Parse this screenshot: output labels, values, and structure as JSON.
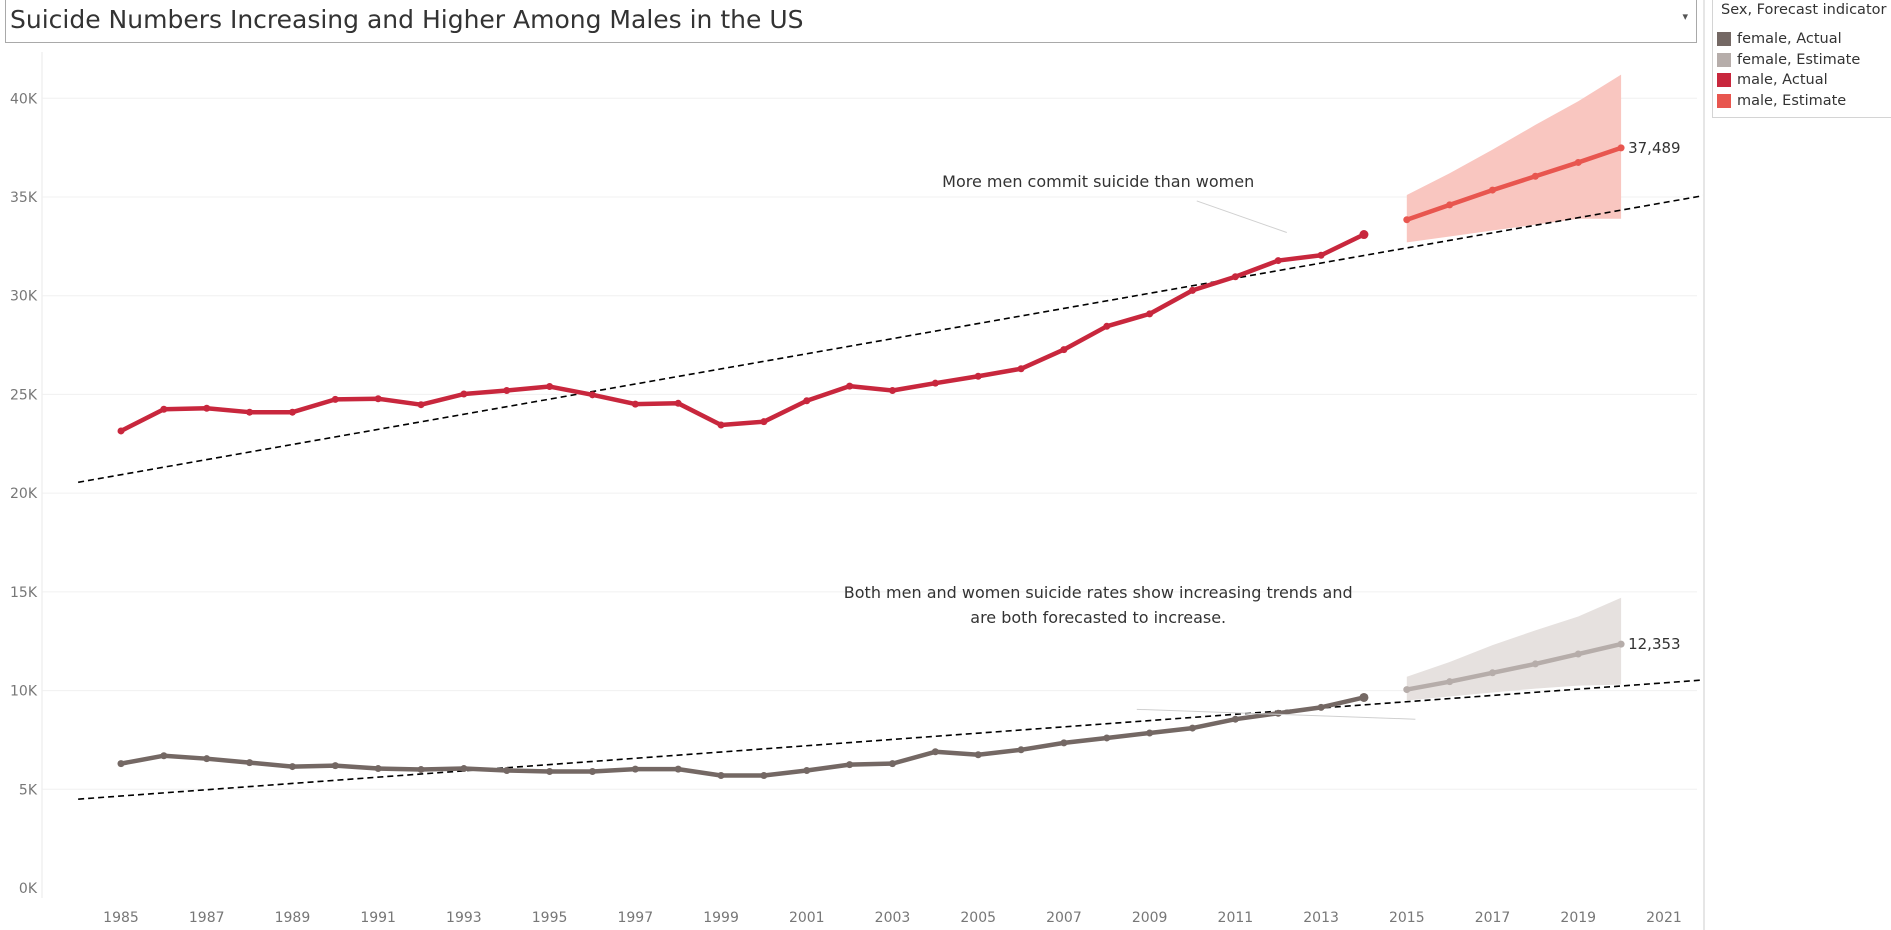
{
  "title": "Suicide Numbers Increasing and Higher Among Males in the US",
  "legend": {
    "title": "Sex, Forecast indicator",
    "items": [
      {
        "label": "female, Actual",
        "color": "#746864"
      },
      {
        "label": "female, Estimate",
        "color": "#b6adaa"
      },
      {
        "label": "male, Actual",
        "color": "#c8273d"
      },
      {
        "label": "male, Estimate",
        "color": "#e8564f"
      }
    ]
  },
  "chart_data": {
    "type": "line",
    "title": "Suicide Numbers Increasing and Higher Among Males in the US",
    "xlabel": "",
    "ylabel": "",
    "xlim": [
      1984,
      2022
    ],
    "ylim": [
      0,
      42000
    ],
    "x_ticks": [
      "1985",
      "1987",
      "1989",
      "1991",
      "1993",
      "1995",
      "1997",
      "1999",
      "2001",
      "2003",
      "2005",
      "2007",
      "2009",
      "2011",
      "2013",
      "2015",
      "2017",
      "2019",
      "2021"
    ],
    "y_ticks": [
      "0K",
      "5K",
      "10K",
      "15K",
      "20K",
      "25K",
      "30K",
      "35K",
      "40K"
    ],
    "y_tick_values": [
      0,
      5000,
      10000,
      15000,
      20000,
      25000,
      30000,
      35000,
      40000
    ],
    "grid": true,
    "legend_position": "right",
    "series": [
      {
        "name": "male, Actual",
        "color": "#c8273d",
        "x": [
          1985,
          1986,
          1987,
          1988,
          1989,
          1990,
          1991,
          1992,
          1993,
          1994,
          1995,
          1996,
          1997,
          1998,
          1999,
          2000,
          2001,
          2002,
          2003,
          2004,
          2005,
          2006,
          2007,
          2008,
          2009,
          2010,
          2011,
          2012,
          2013,
          2014
        ],
        "y": [
          23150,
          24250,
          24300,
          24100,
          24100,
          24750,
          24780,
          24480,
          25020,
          25200,
          25400,
          24980,
          24510,
          24550,
          23450,
          23620,
          24680,
          25420,
          25200,
          25570,
          25920,
          26300,
          27270,
          28450,
          29080,
          30270,
          30960,
          31780,
          32050,
          33100
        ]
      },
      {
        "name": "male, Estimate",
        "color": "#e8564f",
        "x": [
          2015,
          2016,
          2017,
          2018,
          2019,
          2020
        ],
        "y": [
          33850,
          34600,
          35350,
          36050,
          36750,
          37489
        ],
        "band_upper": [
          35100,
          36200,
          37400,
          38650,
          39850,
          41200
        ],
        "band_lower": [
          32700,
          33000,
          33300,
          33600,
          33900,
          33900
        ],
        "band_color": "#f9c6c0"
      },
      {
        "name": "female, Actual",
        "color": "#746864",
        "x": [
          1985,
          1986,
          1987,
          1988,
          1989,
          1990,
          1991,
          1992,
          1993,
          1994,
          1995,
          1996,
          1997,
          1998,
          1999,
          2000,
          2001,
          2002,
          2003,
          2004,
          2005,
          2006,
          2007,
          2008,
          2009,
          2010,
          2011,
          2012,
          2013,
          2014
        ],
        "y": [
          6300,
          6700,
          6550,
          6350,
          6150,
          6200,
          6050,
          6000,
          6050,
          5950,
          5900,
          5900,
          6020,
          6020,
          5700,
          5700,
          5950,
          6250,
          6300,
          6900,
          6750,
          7000,
          7350,
          7600,
          7850,
          8100,
          8550,
          8850,
          9150,
          9650
        ],
        "trend_end_label": ""
      },
      {
        "name": "female, Estimate",
        "color": "#b6adaa",
        "x": [
          2015,
          2016,
          2017,
          2018,
          2019,
          2020
        ],
        "y": [
          10050,
          10450,
          10900,
          11350,
          11850,
          12353
        ],
        "band_upper": [
          10700,
          11450,
          12300,
          13050,
          13750,
          14700
        ],
        "band_lower": [
          9500,
          9700,
          9900,
          10100,
          10250,
          10300
        ],
        "band_color": "#e6e1df"
      }
    ],
    "trend_lines": [
      {
        "x": [
          1984,
          2022
        ],
        "y": [
          20550,
          35100
        ],
        "style": "dashed",
        "color": "#000000"
      },
      {
        "x": [
          1984,
          2022
        ],
        "y": [
          4500,
          10550
        ],
        "style": "dashed",
        "color": "#000000"
      }
    ],
    "end_labels": [
      {
        "text": "37,489",
        "x": 2020,
        "y": 37489
      },
      {
        "text": "12,353",
        "x": 2020,
        "y": 12353
      }
    ],
    "annotations": [
      {
        "lines": [
          "More men commit suicide than women"
        ],
        "text_x": 2007.8,
        "text_y": 35500,
        "pointer": {
          "x1": 2010.1,
          "y1": 34800,
          "x2": 2012.2,
          "y2": 33200
        }
      },
      {
        "lines": [
          "Both men and women suicide rates show increasing trends and",
          "are both forecasted to increase."
        ],
        "text_x": 2007.8,
        "text_y": 14700,
        "pointer": {
          "x1": 2008.7,
          "y1": 9050,
          "x2": 2015.2,
          "y2": 8550
        }
      }
    ]
  }
}
